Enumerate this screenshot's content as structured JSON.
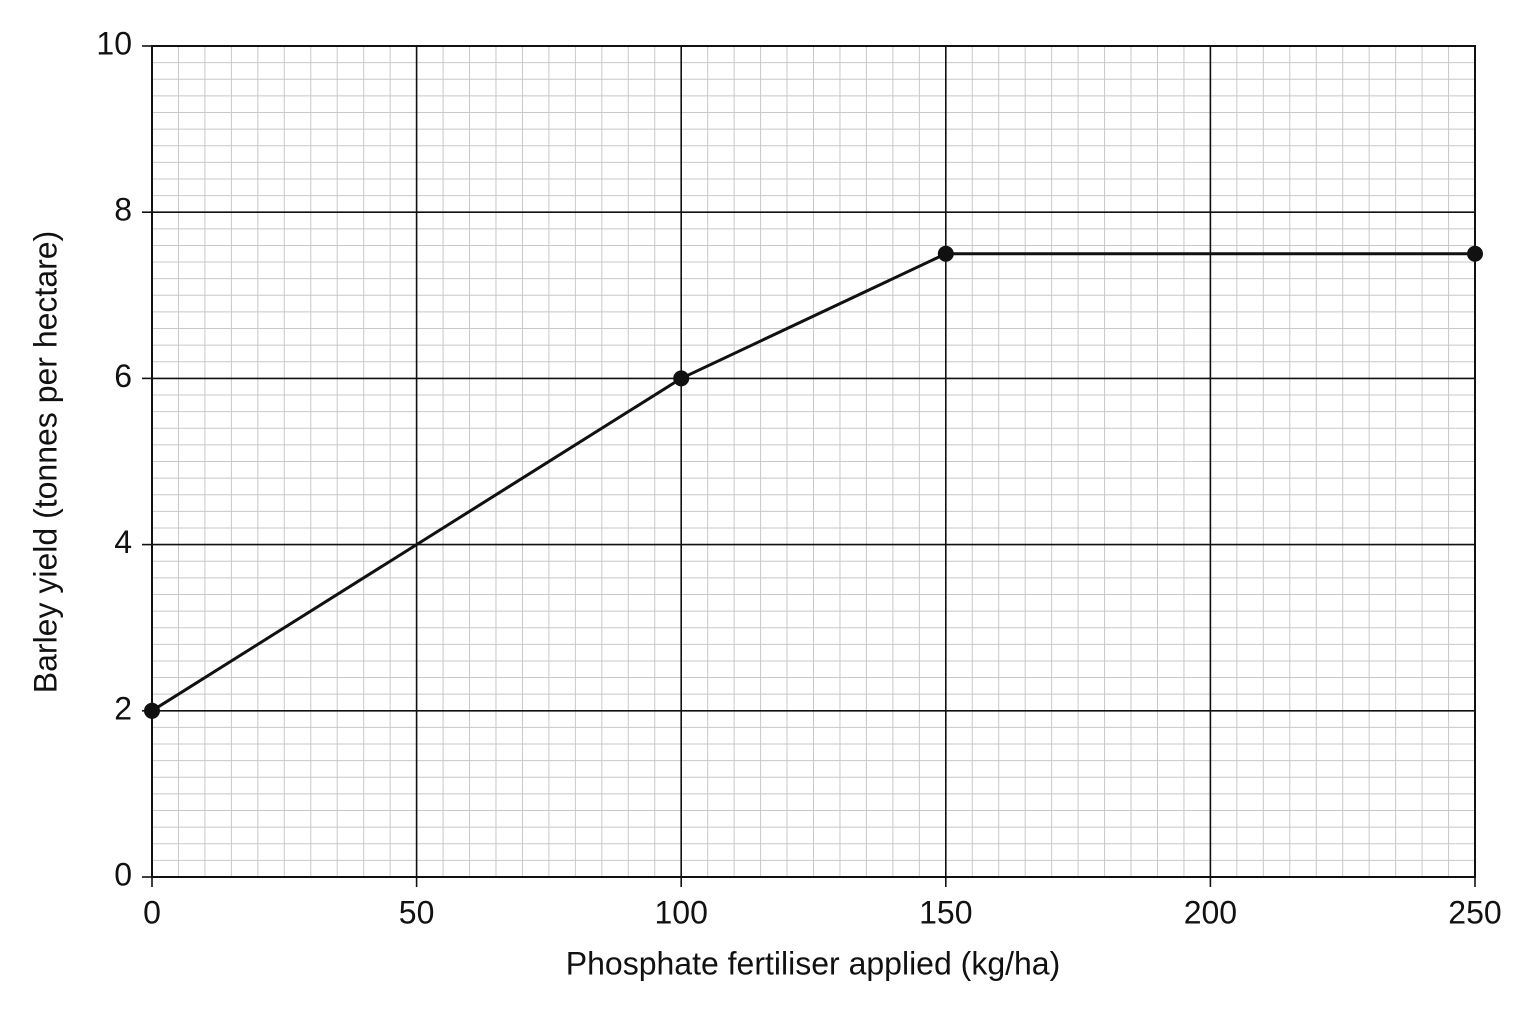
{
  "chart_data": {
    "type": "line",
    "x_label": "Phosphate fertiliser applied (kg/ha)",
    "y_label": "Barley yield (tonnes per hectare)",
    "x": [
      0,
      100,
      150,
      250
    ],
    "series": [
      {
        "values": [
          2,
          6,
          7.5,
          7.5
        ],
        "color": "#111111"
      }
    ],
    "xlim": [
      0,
      250
    ],
    "xticks": [
      0,
      50,
      100,
      150,
      200,
      250
    ],
    "ylim": [
      0,
      10
    ],
    "yticks": [
      0,
      2,
      4,
      6,
      8,
      10
    ],
    "grid": true,
    "minor_grid": true,
    "markers": true
  }
}
